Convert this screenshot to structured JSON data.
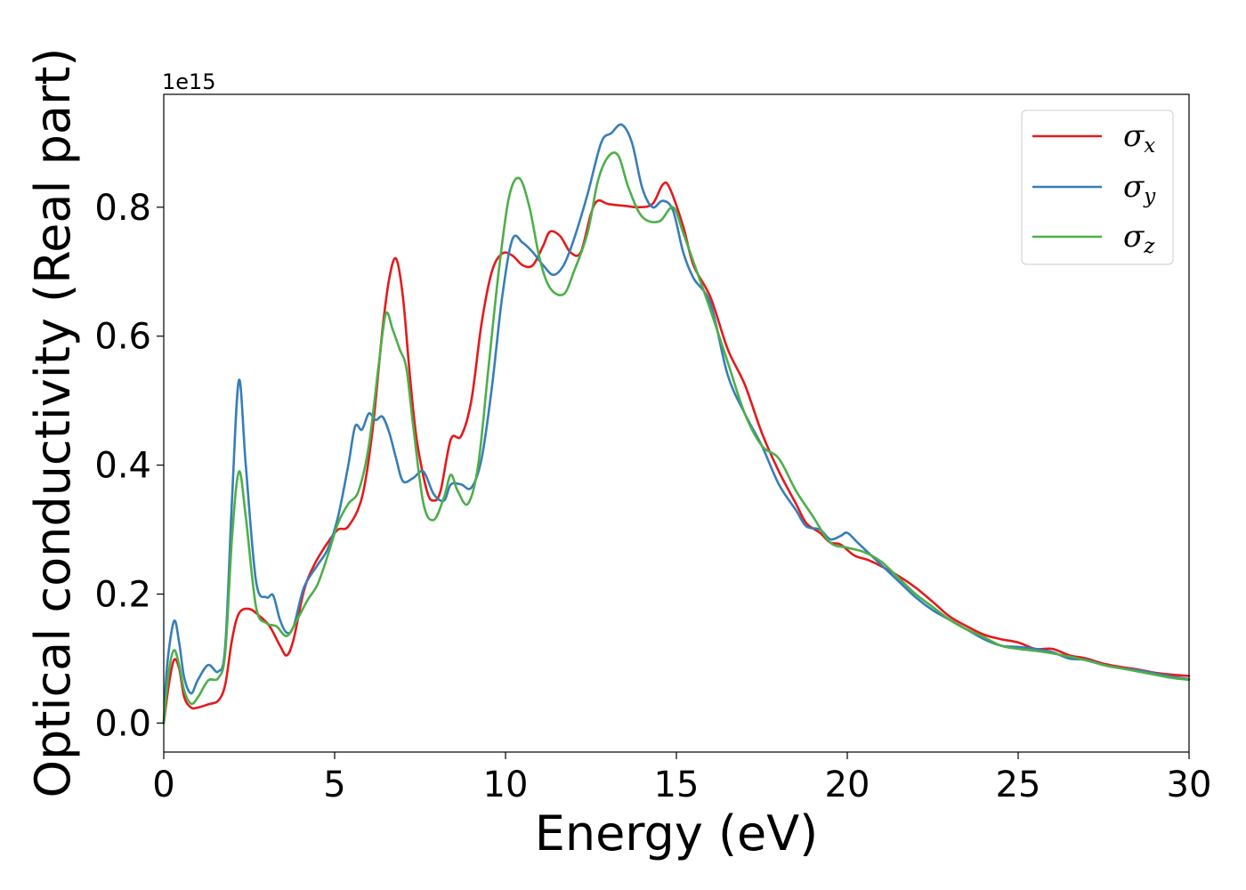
{
  "chart_data": {
    "type": "line",
    "title": "",
    "xlabel": "Energy (eV)",
    "ylabel": "Optical conductivity (Real part)",
    "y_offset_label": "1e15",
    "xlim": [
      0,
      30
    ],
    "ylim": [
      -0.045,
      0.975
    ],
    "x_ticks": [
      0,
      5,
      10,
      15,
      20,
      25,
      30
    ],
    "y_ticks": [
      0.0,
      0.2,
      0.4,
      0.6,
      0.8
    ],
    "x_tick_labels": [
      "0",
      "5",
      "10",
      "15",
      "20",
      "25",
      "30"
    ],
    "y_tick_labels": [
      "0.0",
      "0.2",
      "0.4",
      "0.6",
      "0.8"
    ],
    "grid": false,
    "legend_position": "top-right",
    "series": [
      {
        "name": "σx",
        "name_base": "σ",
        "name_sub": "x",
        "color": "#e41a1c",
        "points": [
          [
            0,
            0
          ],
          [
            0.15,
            0.06
          ],
          [
            0.3,
            0.098
          ],
          [
            0.45,
            0.085
          ],
          [
            0.6,
            0.04
          ],
          [
            0.8,
            0.024
          ],
          [
            1.0,
            0.024
          ],
          [
            1.3,
            0.029
          ],
          [
            1.6,
            0.035
          ],
          [
            1.8,
            0.06
          ],
          [
            2.0,
            0.13
          ],
          [
            2.2,
            0.17
          ],
          [
            2.5,
            0.177
          ],
          [
            2.8,
            0.166
          ],
          [
            3.1,
            0.15
          ],
          [
            3.4,
            0.12
          ],
          [
            3.6,
            0.105
          ],
          [
            3.8,
            0.13
          ],
          [
            4.1,
            0.205
          ],
          [
            4.4,
            0.245
          ],
          [
            4.8,
            0.28
          ],
          [
            5.1,
            0.3
          ],
          [
            5.4,
            0.305
          ],
          [
            5.8,
            0.35
          ],
          [
            6.1,
            0.45
          ],
          [
            6.4,
            0.61
          ],
          [
            6.6,
            0.69
          ],
          [
            6.8,
            0.72
          ],
          [
            7.0,
            0.66
          ],
          [
            7.2,
            0.54
          ],
          [
            7.4,
            0.44
          ],
          [
            7.7,
            0.36
          ],
          [
            7.9,
            0.345
          ],
          [
            8.1,
            0.36
          ],
          [
            8.4,
            0.44
          ],
          [
            8.7,
            0.445
          ],
          [
            9.0,
            0.5
          ],
          [
            9.3,
            0.62
          ],
          [
            9.6,
            0.7
          ],
          [
            9.9,
            0.728
          ],
          [
            10.2,
            0.725
          ],
          [
            10.5,
            0.71
          ],
          [
            10.8,
            0.71
          ],
          [
            11.1,
            0.74
          ],
          [
            11.3,
            0.762
          ],
          [
            11.6,
            0.755
          ],
          [
            11.9,
            0.73
          ],
          [
            12.2,
            0.73
          ],
          [
            12.5,
            0.79
          ],
          [
            12.7,
            0.81
          ],
          [
            13.0,
            0.805
          ],
          [
            13.5,
            0.802
          ],
          [
            13.9,
            0.8
          ],
          [
            14.3,
            0.805
          ],
          [
            14.6,
            0.835
          ],
          [
            14.8,
            0.83
          ],
          [
            15.2,
            0.77
          ],
          [
            15.5,
            0.71
          ],
          [
            16.0,
            0.66
          ],
          [
            16.5,
            0.58
          ],
          [
            17.0,
            0.525
          ],
          [
            17.5,
            0.45
          ],
          [
            18.0,
            0.39
          ],
          [
            18.5,
            0.34
          ],
          [
            18.8,
            0.31
          ],
          [
            19.2,
            0.295
          ],
          [
            19.5,
            0.28
          ],
          [
            19.8,
            0.277
          ],
          [
            20.2,
            0.26
          ],
          [
            20.6,
            0.253
          ],
          [
            21.0,
            0.243
          ],
          [
            21.5,
            0.228
          ],
          [
            22.0,
            0.21
          ],
          [
            22.5,
            0.188
          ],
          [
            23.0,
            0.165
          ],
          [
            23.5,
            0.15
          ],
          [
            24.0,
            0.137
          ],
          [
            24.5,
            0.13
          ],
          [
            25.0,
            0.125
          ],
          [
            25.5,
            0.115
          ],
          [
            26.0,
            0.115
          ],
          [
            26.5,
            0.105
          ],
          [
            27.0,
            0.1
          ],
          [
            27.5,
            0.092
          ],
          [
            28.0,
            0.087
          ],
          [
            28.5,
            0.083
          ],
          [
            29.0,
            0.078
          ],
          [
            29.5,
            0.075
          ],
          [
            30.0,
            0.073
          ]
        ]
      },
      {
        "name": "σy",
        "name_base": "σ",
        "name_sub": "y",
        "color": "#377eb8",
        "points": [
          [
            0,
            0
          ],
          [
            0.1,
            0.09
          ],
          [
            0.3,
            0.158
          ],
          [
            0.45,
            0.125
          ],
          [
            0.6,
            0.07
          ],
          [
            0.8,
            0.046
          ],
          [
            1.0,
            0.067
          ],
          [
            1.3,
            0.09
          ],
          [
            1.6,
            0.08
          ],
          [
            1.8,
            0.12
          ],
          [
            2.0,
            0.35
          ],
          [
            2.2,
            0.532
          ],
          [
            2.4,
            0.4
          ],
          [
            2.7,
            0.22
          ],
          [
            3.0,
            0.195
          ],
          [
            3.2,
            0.198
          ],
          [
            3.4,
            0.16
          ],
          [
            3.6,
            0.14
          ],
          [
            3.8,
            0.15
          ],
          [
            4.1,
            0.21
          ],
          [
            4.5,
            0.245
          ],
          [
            4.8,
            0.27
          ],
          [
            5.1,
            0.32
          ],
          [
            5.4,
            0.4
          ],
          [
            5.6,
            0.46
          ],
          [
            5.8,
            0.455
          ],
          [
            6.0,
            0.48
          ],
          [
            6.2,
            0.47
          ],
          [
            6.4,
            0.475
          ],
          [
            6.6,
            0.45
          ],
          [
            6.8,
            0.41
          ],
          [
            7.0,
            0.375
          ],
          [
            7.3,
            0.38
          ],
          [
            7.6,
            0.39
          ],
          [
            7.9,
            0.355
          ],
          [
            8.2,
            0.345
          ],
          [
            8.4,
            0.37
          ],
          [
            8.7,
            0.37
          ],
          [
            9.0,
            0.365
          ],
          [
            9.3,
            0.41
          ],
          [
            9.6,
            0.52
          ],
          [
            9.9,
            0.66
          ],
          [
            10.2,
            0.75
          ],
          [
            10.5,
            0.745
          ],
          [
            10.8,
            0.73
          ],
          [
            11.1,
            0.71
          ],
          [
            11.4,
            0.695
          ],
          [
            11.7,
            0.71
          ],
          [
            12.0,
            0.75
          ],
          [
            12.4,
            0.82
          ],
          [
            12.8,
            0.9
          ],
          [
            13.1,
            0.915
          ],
          [
            13.4,
            0.928
          ],
          [
            13.7,
            0.9
          ],
          [
            14.0,
            0.83
          ],
          [
            14.3,
            0.8
          ],
          [
            14.6,
            0.81
          ],
          [
            14.9,
            0.795
          ],
          [
            15.2,
            0.73
          ],
          [
            15.5,
            0.69
          ],
          [
            16.0,
            0.65
          ],
          [
            16.5,
            0.54
          ],
          [
            17.0,
            0.48
          ],
          [
            17.5,
            0.43
          ],
          [
            18.0,
            0.37
          ],
          [
            18.5,
            0.33
          ],
          [
            18.8,
            0.305
          ],
          [
            19.2,
            0.3
          ],
          [
            19.5,
            0.285
          ],
          [
            19.8,
            0.29
          ],
          [
            20.0,
            0.295
          ],
          [
            20.3,
            0.28
          ],
          [
            20.6,
            0.265
          ],
          [
            21.0,
            0.245
          ],
          [
            21.5,
            0.22
          ],
          [
            22.0,
            0.195
          ],
          [
            22.5,
            0.175
          ],
          [
            23.0,
            0.16
          ],
          [
            23.5,
            0.145
          ],
          [
            24.0,
            0.13
          ],
          [
            24.5,
            0.12
          ],
          [
            25.0,
            0.118
          ],
          [
            25.5,
            0.115
          ],
          [
            26.0,
            0.11
          ],
          [
            26.5,
            0.1
          ],
          [
            27.0,
            0.098
          ],
          [
            27.5,
            0.09
          ],
          [
            28.0,
            0.085
          ],
          [
            28.5,
            0.082
          ],
          [
            29.0,
            0.077
          ],
          [
            29.5,
            0.072
          ],
          [
            30.0,
            0.068
          ]
        ]
      },
      {
        "name": "σz",
        "name_base": "σ",
        "name_sub": "z",
        "color": "#4daf4a",
        "points": [
          [
            0,
            0
          ],
          [
            0.15,
            0.08
          ],
          [
            0.3,
            0.113
          ],
          [
            0.45,
            0.09
          ],
          [
            0.6,
            0.05
          ],
          [
            0.8,
            0.03
          ],
          [
            1.0,
            0.04
          ],
          [
            1.3,
            0.066
          ],
          [
            1.6,
            0.07
          ],
          [
            1.8,
            0.11
          ],
          [
            2.0,
            0.29
          ],
          [
            2.2,
            0.39
          ],
          [
            2.4,
            0.32
          ],
          [
            2.7,
            0.18
          ],
          [
            3.0,
            0.155
          ],
          [
            3.3,
            0.15
          ],
          [
            3.6,
            0.135
          ],
          [
            3.9,
            0.16
          ],
          [
            4.2,
            0.19
          ],
          [
            4.5,
            0.215
          ],
          [
            4.8,
            0.26
          ],
          [
            5.1,
            0.31
          ],
          [
            5.4,
            0.34
          ],
          [
            5.7,
            0.36
          ],
          [
            6.0,
            0.43
          ],
          [
            6.3,
            0.56
          ],
          [
            6.5,
            0.635
          ],
          [
            6.7,
            0.61
          ],
          [
            6.9,
            0.58
          ],
          [
            7.1,
            0.55
          ],
          [
            7.3,
            0.46
          ],
          [
            7.6,
            0.34
          ],
          [
            7.9,
            0.315
          ],
          [
            8.2,
            0.35
          ],
          [
            8.4,
            0.385
          ],
          [
            8.6,
            0.36
          ],
          [
            8.9,
            0.34
          ],
          [
            9.2,
            0.4
          ],
          [
            9.5,
            0.55
          ],
          [
            9.8,
            0.7
          ],
          [
            10.1,
            0.815
          ],
          [
            10.4,
            0.845
          ],
          [
            10.7,
            0.8
          ],
          [
            11.0,
            0.72
          ],
          [
            11.3,
            0.675
          ],
          [
            11.7,
            0.665
          ],
          [
            12.0,
            0.7
          ],
          [
            12.4,
            0.76
          ],
          [
            12.7,
            0.84
          ],
          [
            13.0,
            0.878
          ],
          [
            13.3,
            0.88
          ],
          [
            13.6,
            0.83
          ],
          [
            14.0,
            0.785
          ],
          [
            14.5,
            0.778
          ],
          [
            14.9,
            0.8
          ],
          [
            15.2,
            0.76
          ],
          [
            15.6,
            0.7
          ],
          [
            16.0,
            0.64
          ],
          [
            16.5,
            0.56
          ],
          [
            17.0,
            0.48
          ],
          [
            17.5,
            0.43
          ],
          [
            18.0,
            0.41
          ],
          [
            18.5,
            0.36
          ],
          [
            19.0,
            0.32
          ],
          [
            19.5,
            0.28
          ],
          [
            20.0,
            0.272
          ],
          [
            20.5,
            0.265
          ],
          [
            21.0,
            0.25
          ],
          [
            21.5,
            0.225
          ],
          [
            22.0,
            0.2
          ],
          [
            22.5,
            0.18
          ],
          [
            23.0,
            0.16
          ],
          [
            23.5,
            0.145
          ],
          [
            24.0,
            0.133
          ],
          [
            24.5,
            0.12
          ],
          [
            25.0,
            0.115
          ],
          [
            25.5,
            0.112
          ],
          [
            26.0,
            0.108
          ],
          [
            26.5,
            0.103
          ],
          [
            27.0,
            0.097
          ],
          [
            27.5,
            0.09
          ],
          [
            28.0,
            0.085
          ],
          [
            28.5,
            0.08
          ],
          [
            29.0,
            0.075
          ],
          [
            29.5,
            0.07
          ],
          [
            30.0,
            0.067
          ]
        ]
      }
    ]
  }
}
